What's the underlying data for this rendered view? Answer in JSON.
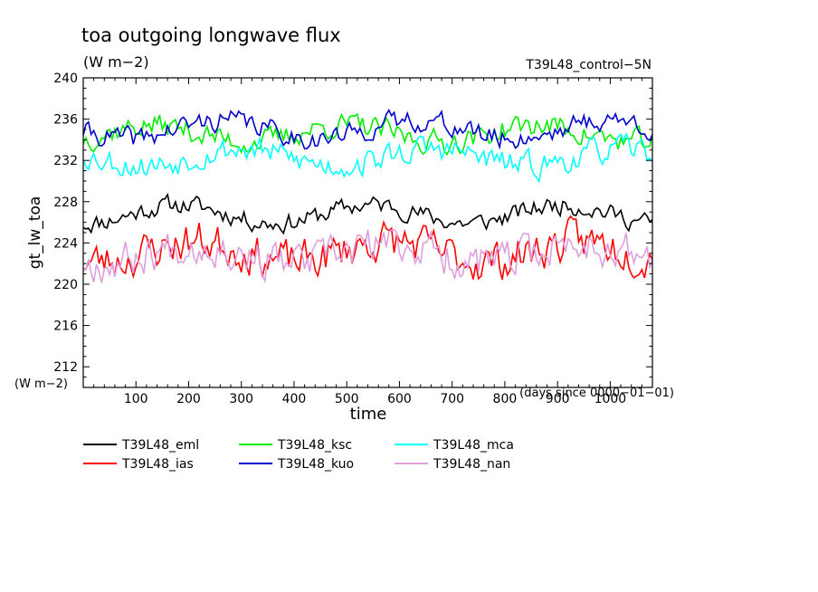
{
  "chart_data": {
    "type": "line",
    "title": "toa outgoing longwave flux",
    "units_label": "(W m−2)",
    "run_label": "T39L48_control−5N",
    "ylabel": "gt_lw_toa",
    "y_units_label": "(W m−2)",
    "xlabel": "time",
    "x_units_label": "(days since 0000−01−01)",
    "xlim": [
      0,
      1080
    ],
    "ylim": [
      210,
      240
    ],
    "xticks": [
      100,
      200,
      300,
      400,
      500,
      600,
      700,
      800,
      900,
      1000
    ],
    "yticks": [
      212,
      216,
      220,
      224,
      228,
      232,
      236,
      240
    ],
    "x_step_days": 5,
    "series": [
      {
        "name": "T39L48_eml",
        "color": "#000000",
        "mean": 226.8,
        "amp": 0.9,
        "noise": 0.8,
        "seed": 11,
        "values": []
      },
      {
        "name": "T39L48_ias",
        "color": "#ff0000",
        "mean": 223.2,
        "amp": 1.0,
        "noise": 1.7,
        "seed": 23,
        "values": []
      },
      {
        "name": "T39L48_ksc",
        "color": "#00ee00",
        "mean": 234.6,
        "amp": 0.8,
        "noise": 1.0,
        "seed": 37,
        "values": []
      },
      {
        "name": "T39L48_kuo",
        "color": "#0000cc",
        "mean": 235.0,
        "amp": 0.9,
        "noise": 0.9,
        "seed": 41,
        "values": []
      },
      {
        "name": "T39L48_mca",
        "color": "#00ffff",
        "mean": 232.3,
        "amp": 0.8,
        "noise": 1.1,
        "seed": 53,
        "values": []
      },
      {
        "name": "T39L48_nan",
        "color": "#dda0dd",
        "mean": 223.0,
        "amp": 0.9,
        "noise": 1.6,
        "seed": 67,
        "values": []
      }
    ]
  }
}
